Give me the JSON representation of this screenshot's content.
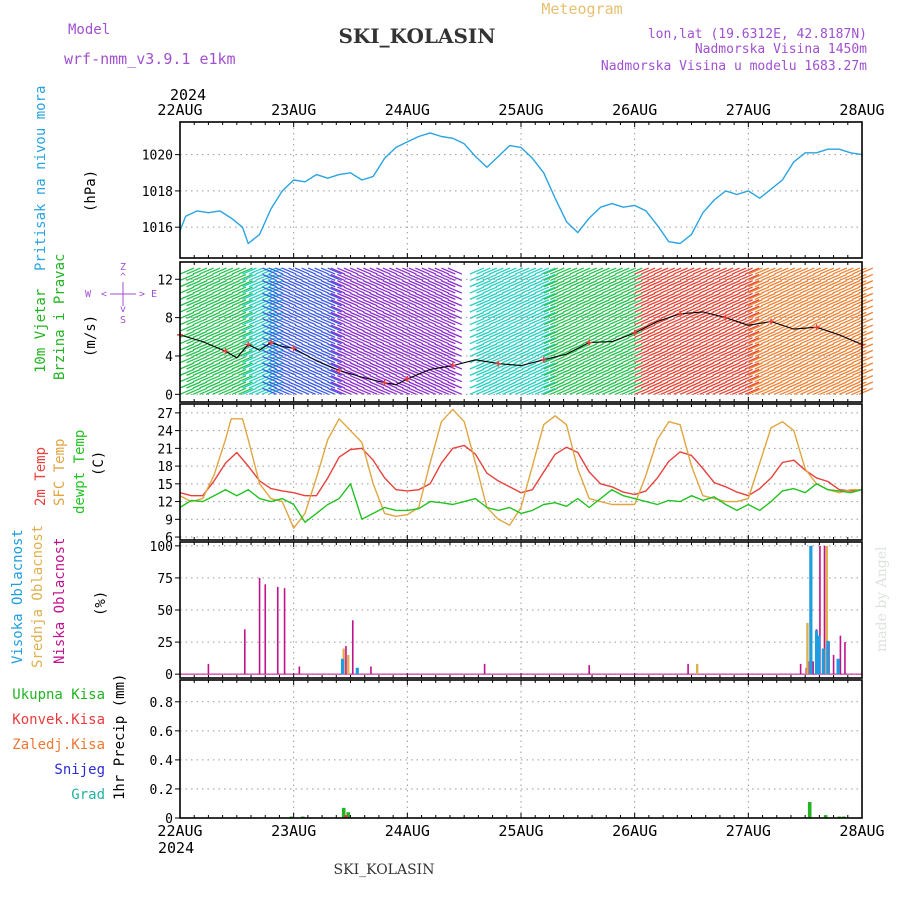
{
  "header": {
    "model_label": "Model",
    "model_name": "wrf-nmm_v3.9.1  e1km",
    "station": "SKI_KOLASIN",
    "chart_kind": "Meteogram",
    "lonlat": "lon,lat (19.6312E, 42.8187N)",
    "elevation": "Nadmorska Visina 1450m",
    "model_elevation": "Nadmorska Visina u modelu 1683.27m",
    "year_top": "2024",
    "year_bottom": "2024",
    "footer_station": "SKI_KOLASIN",
    "credit": "made by Angel"
  },
  "colors": {
    "pressure": "#2aa4e0",
    "temp2m": "#e8403c",
    "sfc_temp": "#e0a640",
    "dewpt": "#22c322",
    "high_cloud": "#1e9ee0",
    "mid_cloud": "#e0b050",
    "low_cloud": "#c0138c",
    "total_precip": "#22b422",
    "conv_precip": "#e83c3c",
    "frz_precip": "#f07832",
    "snow": "#2c2cd8",
    "graupel": "#22b4a0",
    "label_violet": "#a050d0"
  },
  "chart_data": [
    {
      "id": "pressure",
      "type": "line",
      "ylabel": "Pritisak na nivou mora",
      "unit": "(hPa)",
      "ylim": [
        1014.3,
        1021.8
      ],
      "yticks": [
        1016,
        1018,
        1020
      ],
      "x_day_ticks": [
        "22AUG",
        "23AUG",
        "24AUG",
        "25AUG",
        "26AUG",
        "27AUG",
        "28AUG"
      ],
      "series": [
        {
          "x": [
            0,
            0.05,
            0.15,
            0.25,
            0.35,
            0.45,
            0.55,
            0.6,
            0.7,
            0.8,
            0.9,
            1.0,
            1.1,
            1.2,
            1.3,
            1.4,
            1.5,
            1.6,
            1.7,
            1.8,
            1.9,
            2.0,
            2.1,
            2.2,
            2.3,
            2.4,
            2.5,
            2.6,
            2.7,
            2.8,
            2.9,
            3.0,
            3.1,
            3.2,
            3.3,
            3.4,
            3.5,
            3.6,
            3.7,
            3.8,
            3.9,
            4.0,
            4.1,
            4.2,
            4.3,
            4.4,
            4.5,
            4.6,
            4.7,
            4.8,
            4.9,
            5.0,
            5.1,
            5.2,
            5.3,
            5.4,
            5.5,
            5.6,
            5.7,
            5.8,
            5.9,
            6.0
          ],
          "values": [
            1015.8,
            1016.6,
            1016.9,
            1016.8,
            1016.9,
            1016.5,
            1016.0,
            1015.1,
            1015.6,
            1017.0,
            1018.0,
            1018.6,
            1018.5,
            1018.9,
            1018.7,
            1018.9,
            1019.0,
            1018.6,
            1018.8,
            1019.8,
            1020.4,
            1020.7,
            1021.0,
            1021.2,
            1021.0,
            1020.9,
            1020.6,
            1019.9,
            1019.3,
            1019.9,
            1020.5,
            1020.4,
            1019.8,
            1019.0,
            1017.6,
            1016.3,
            1015.7,
            1016.5,
            1017.1,
            1017.3,
            1017.1,
            1017.2,
            1016.9,
            1016.1,
            1015.2,
            1015.1,
            1015.6,
            1016.8,
            1017.5,
            1018.0,
            1017.8,
            1018.0,
            1017.6,
            1018.1,
            1018.6,
            1019.6,
            1020.1,
            1020.1,
            1020.3,
            1020.3,
            1020.1,
            1020.0
          ],
          "color_key": "pressure"
        }
      ]
    },
    {
      "id": "wind",
      "type": "barbs",
      "ylabel_1": "10m Vjetar",
      "ylabel_2": "Brzina i Pravac",
      "unit": "(m/s)",
      "ylim": [
        -0.8,
        13.8
      ],
      "yticks": [
        0,
        4,
        8,
        12
      ],
      "compass": [
        "Z",
        "^",
        "W",
        "<",
        "E",
        ">",
        "v",
        "S"
      ],
      "speed": {
        "x": [
          0,
          0.2,
          0.4,
          0.5,
          0.6,
          0.7,
          0.8,
          0.9,
          1.0,
          1.2,
          1.4,
          1.6,
          1.8,
          1.9,
          2.0,
          2.2,
          2.4,
          2.6,
          2.8,
          3.0,
          3.2,
          3.4,
          3.6,
          3.8,
          4.0,
          4.2,
          4.4,
          4.6,
          4.8,
          5.0,
          5.2,
          5.4,
          5.6,
          5.8,
          6.0
        ],
        "values": [
          6.2,
          5.5,
          4.5,
          3.8,
          5.2,
          4.6,
          5.4,
          5.0,
          4.8,
          3.5,
          2.5,
          1.8,
          1.2,
          1.0,
          1.6,
          2.6,
          3.0,
          3.6,
          3.2,
          3.0,
          3.6,
          4.2,
          5.4,
          5.5,
          6.4,
          7.6,
          8.4,
          8.6,
          8.0,
          7.2,
          7.6,
          6.8,
          7.0,
          6.2,
          5.2
        ]
      },
      "barb_bands": [
        {
          "x0": 0.0,
          "x1": 0.55,
          "color": "#22c24c",
          "dir": 1
        },
        {
          "x0": 0.55,
          "x1": 0.85,
          "color": "#22d0c0",
          "dir": 1
        },
        {
          "x0": 0.85,
          "x1": 1.45,
          "color": "#3a58e8",
          "dir": -1
        },
        {
          "x0": 1.45,
          "x1": 2.55,
          "color": "#8a2cd0",
          "dir": -1
        },
        {
          "x0": 2.55,
          "x1": 3.2,
          "color": "#22d0c0",
          "dir": 1
        },
        {
          "x0": 3.2,
          "x1": 4.0,
          "color": "#22c24c",
          "dir": 1
        },
        {
          "x0": 4.0,
          "x1": 5.0,
          "color": "#e84030",
          "dir": 1
        },
        {
          "x0": 5.0,
          "x1": 6.0,
          "color": "#f08030",
          "dir": 1
        }
      ]
    },
    {
      "id": "temperature",
      "type": "line",
      "ylabel_1": "2m Temp",
      "ylabel_2": "SFC Temp",
      "ylabel_3": "dewpt Temp",
      "unit": "(C)",
      "ylim": [
        5.5,
        28.5
      ],
      "yticks": [
        6,
        9,
        12,
        15,
        18,
        21,
        24,
        27
      ],
      "series": [
        {
          "name": "2m Temp",
          "color_key": "temp2m",
          "x": [
            0,
            0.1,
            0.2,
            0.3,
            0.4,
            0.5,
            0.6,
            0.7,
            0.8,
            0.9,
            1.0,
            1.1,
            1.2,
            1.3,
            1.4,
            1.5,
            1.6,
            1.7,
            1.8,
            1.9,
            2.0,
            2.1,
            2.2,
            2.3,
            2.4,
            2.5,
            2.6,
            2.7,
            2.8,
            2.9,
            3.0,
            3.1,
            3.2,
            3.3,
            3.4,
            3.5,
            3.6,
            3.7,
            3.8,
            3.9,
            4.0,
            4.1,
            4.2,
            4.3,
            4.4,
            4.5,
            4.6,
            4.7,
            4.8,
            4.9,
            5.0,
            5.1,
            5.2,
            5.3,
            5.4,
            5.5,
            5.6,
            5.7,
            5.8,
            5.9,
            6.0
          ],
          "values": [
            13.5,
            13.0,
            13.0,
            15.5,
            18.5,
            20.3,
            18.0,
            15.5,
            14.2,
            13.8,
            13.5,
            13.0,
            13.0,
            16.0,
            19.5,
            20.8,
            21.0,
            19.0,
            16.0,
            14.0,
            13.8,
            14.0,
            15.0,
            18.5,
            21.0,
            21.5,
            20.0,
            16.8,
            15.5,
            14.5,
            13.5,
            14.0,
            17.0,
            20.0,
            21.2,
            20.3,
            17.0,
            15.0,
            14.5,
            13.6,
            13.2,
            13.8,
            16.0,
            18.8,
            20.4,
            19.8,
            17.6,
            15.2,
            14.5,
            13.6,
            13.0,
            14.2,
            16.0,
            18.6,
            19.0,
            17.3,
            16.0,
            15.4,
            14.0,
            13.8,
            14.0
          ]
        },
        {
          "name": "SFC Temp",
          "color_key": "sfc_temp",
          "x": [
            0,
            0.1,
            0.2,
            0.3,
            0.4,
            0.45,
            0.55,
            0.6,
            0.7,
            0.8,
            0.9,
            1.0,
            1.1,
            1.2,
            1.3,
            1.4,
            1.5,
            1.6,
            1.7,
            1.8,
            1.9,
            2.0,
            2.1,
            2.2,
            2.3,
            2.4,
            2.5,
            2.6,
            2.7,
            2.8,
            2.9,
            3.0,
            3.1,
            3.2,
            3.3,
            3.4,
            3.5,
            3.6,
            3.7,
            3.8,
            3.9,
            4.0,
            4.1,
            4.2,
            4.3,
            4.4,
            4.5,
            4.6,
            4.7,
            4.8,
            4.9,
            5.0,
            5.1,
            5.2,
            5.3,
            5.4,
            5.5,
            5.6,
            5.7,
            5.8,
            5.9,
            6.0
          ],
          "values": [
            13.0,
            12.0,
            12.5,
            16.5,
            22.5,
            26.0,
            26.0,
            22.5,
            15.0,
            12.5,
            12.0,
            7.5,
            10.0,
            16.0,
            22.5,
            26.0,
            24.0,
            22.0,
            15.0,
            10.0,
            9.5,
            9.8,
            11.0,
            18.5,
            25.5,
            27.6,
            25.5,
            18.5,
            11.0,
            9.0,
            8.0,
            11.0,
            18.0,
            25.0,
            26.5,
            25.0,
            17.5,
            12.5,
            12.0,
            11.5,
            11.5,
            11.5,
            16.5,
            22.5,
            25.5,
            25.0,
            18.0,
            13.0,
            12.5,
            12.0,
            12.0,
            12.5,
            18.5,
            24.5,
            25.5,
            24.0,
            17.5,
            15.0,
            14.0,
            13.5,
            14.0,
            14.0
          ]
        },
        {
          "name": "dewpt Temp",
          "color_key": "dewpt",
          "x": [
            0,
            0.1,
            0.2,
            0.3,
            0.4,
            0.5,
            0.6,
            0.7,
            0.8,
            0.9,
            1.0,
            1.1,
            1.2,
            1.3,
            1.4,
            1.5,
            1.6,
            1.7,
            1.8,
            1.9,
            2.0,
            2.1,
            2.2,
            2.3,
            2.4,
            2.5,
            2.6,
            2.7,
            2.8,
            2.9,
            3.0,
            3.1,
            3.2,
            3.3,
            3.4,
            3.5,
            3.6,
            3.7,
            3.8,
            3.9,
            4.0,
            4.1,
            4.2,
            4.3,
            4.4,
            4.5,
            4.6,
            4.7,
            4.8,
            4.9,
            5.0,
            5.1,
            5.2,
            5.3,
            5.4,
            5.5,
            5.6,
            5.7,
            5.8,
            5.9,
            6.0
          ],
          "values": [
            11.0,
            12.2,
            12.0,
            13.0,
            14.0,
            13.0,
            14.0,
            12.5,
            12.0,
            12.5,
            11.5,
            8.5,
            10.0,
            11.5,
            12.5,
            15.0,
            9.0,
            10.0,
            11.0,
            10.5,
            10.5,
            10.8,
            12.0,
            11.8,
            11.5,
            12.0,
            12.5,
            11.0,
            10.5,
            11.0,
            10.0,
            10.5,
            11.5,
            11.8,
            11.2,
            12.5,
            11.0,
            12.5,
            14.0,
            13.0,
            12.5,
            12.0,
            11.5,
            12.2,
            12.0,
            13.0,
            12.2,
            12.8,
            11.5,
            10.5,
            11.5,
            10.5,
            12.0,
            13.8,
            14.2,
            13.5,
            15.0,
            14.0,
            13.8,
            13.5,
            14.0
          ]
        }
      ]
    },
    {
      "id": "clouds",
      "type": "bar",
      "ylabel_1": "Visoka Oblacnost",
      "ylabel_2": "Srednja Oblacnost",
      "ylabel_3": "Niska Oblacnost",
      "unit": "(%)",
      "ylim": [
        -3,
        103
      ],
      "yticks": [
        0,
        25,
        50,
        75,
        100
      ],
      "series": [
        {
          "name": "Niska Oblacnost",
          "color_key": "low_cloud",
          "x": [
            0.25,
            0.57,
            0.7,
            0.75,
            0.86,
            0.92,
            1.05,
            1.46,
            1.52,
            1.68,
            2.68,
            3.6,
            4.47,
            5.46,
            5.51,
            5.53,
            5.57,
            5.6,
            5.63,
            5.67,
            5.71,
            5.75,
            5.81,
            5.85
          ],
          "values": [
            8,
            35,
            75,
            70,
            68,
            67,
            6,
            22,
            42,
            6,
            8,
            7,
            8,
            8,
            5,
            10,
            10,
            35,
            100,
            100,
            25,
            15,
            30,
            25
          ]
        },
        {
          "name": "Srednja Oblacnost",
          "color_key": "mid_cloud",
          "x": [
            1.44,
            1.48,
            4.55,
            5.52,
            5.69
          ],
          "values": [
            20,
            15,
            8,
            40,
            100
          ]
        },
        {
          "name": "Visoka Oblacnost",
          "color_key": "high_cloud",
          "x": [
            1.43,
            1.56,
            5.55,
            5.6,
            5.62,
            5.66,
            5.7,
            5.79
          ],
          "values": [
            12,
            5,
            100,
            34,
            30,
            20,
            26,
            12
          ]
        }
      ]
    },
    {
      "id": "precip",
      "type": "bar",
      "ylabel_1": "Ukupna Kisa",
      "ylabel_2": "Konvek.Kisa",
      "ylabel_3": "Zaledj.Kisa",
      "ylabel_4": "Snijeg",
      "ylabel_5": "Grad",
      "unit": "1hr Precip (mm)",
      "ylim": [
        0,
        0.95
      ],
      "yticks": [
        0,
        0.2,
        0.4,
        0.6,
        0.8
      ],
      "yticklabels": [
        "0",
        "0.2",
        "0.4",
        "0.6",
        "0.8"
      ],
      "series": [
        {
          "name": "Ukupna Kisa",
          "color_key": "total_precip",
          "x": [
            0.98,
            1.08,
            1.44,
            1.48,
            5.54,
            5.68,
            5.8,
            5.84
          ],
          "values": [
            0.01,
            0.01,
            0.07,
            0.04,
            0.11,
            0.02,
            0.01,
            0.01
          ]
        },
        {
          "name": "Konvek.Kisa",
          "color_key": "conv_precip",
          "x": [
            1.46
          ],
          "values": [
            0.02
          ]
        }
      ]
    }
  ]
}
